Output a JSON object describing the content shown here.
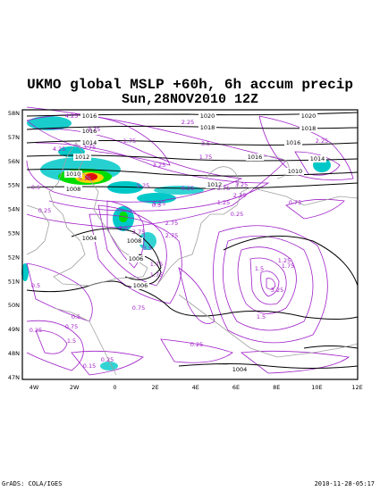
{
  "title_line1": "UKMO global MSLP +60h, 6h accum precip",
  "title_line2": "Sun,28NOV2010 12Z",
  "footer_left": "GrADS: COLA/IGES",
  "footer_right": "2010-11-28-05:17",
  "map": {
    "lat_labels": [
      "58N",
      "57N",
      "56N",
      "55N",
      "54N",
      "53N",
      "52N",
      "51N",
      "50N",
      "49N",
      "48N",
      "47N"
    ],
    "lon_labels": [
      "4W",
      "2W",
      "0",
      "2E",
      "4E",
      "6E",
      "8E",
      "10E",
      "12E"
    ],
    "isobar_labels": [
      "1016",
      "1016",
      "1014",
      "1012",
      "1010",
      "1008",
      "1004",
      "1006",
      "1020",
      "1018",
      "1016",
      "1014",
      "1012",
      "1010",
      "1020",
      "1018",
      "1016",
      "1008",
      "1006",
      "1004"
    ],
    "precip_labels": [
      "4.25",
      "3.75",
      "5.25",
      "3.75",
      "4.25",
      "1.75",
      "3.5",
      "3.25",
      "1.75",
      "2.25",
      "0.5",
      "0.25",
      "0.75",
      "0.25",
      "6.25",
      "5.25",
      "5.25",
      "2.25",
      "3.75",
      "3.25",
      "1.25",
      "8.5",
      "3.75",
      "3.5",
      "2.75",
      "1.75",
      "1.75",
      "1.25",
      "1.75",
      "1.5",
      "3.25",
      "1.5",
      "0.75",
      "0.5",
      "1.5",
      "0.25",
      "0.15",
      "0.25",
      "0.5",
      "0.25",
      "0.75",
      "0.5",
      "2.75",
      "2.25"
    ],
    "colors": {
      "precip_contour": "#a020c8",
      "isobar": "#000000",
      "coast": "#a0a0a0",
      "fill_low": "#00c8c8",
      "fill_mid": "#00dc00",
      "fill_high": "#ffd200",
      "fill_max": "#e01010"
    }
  }
}
